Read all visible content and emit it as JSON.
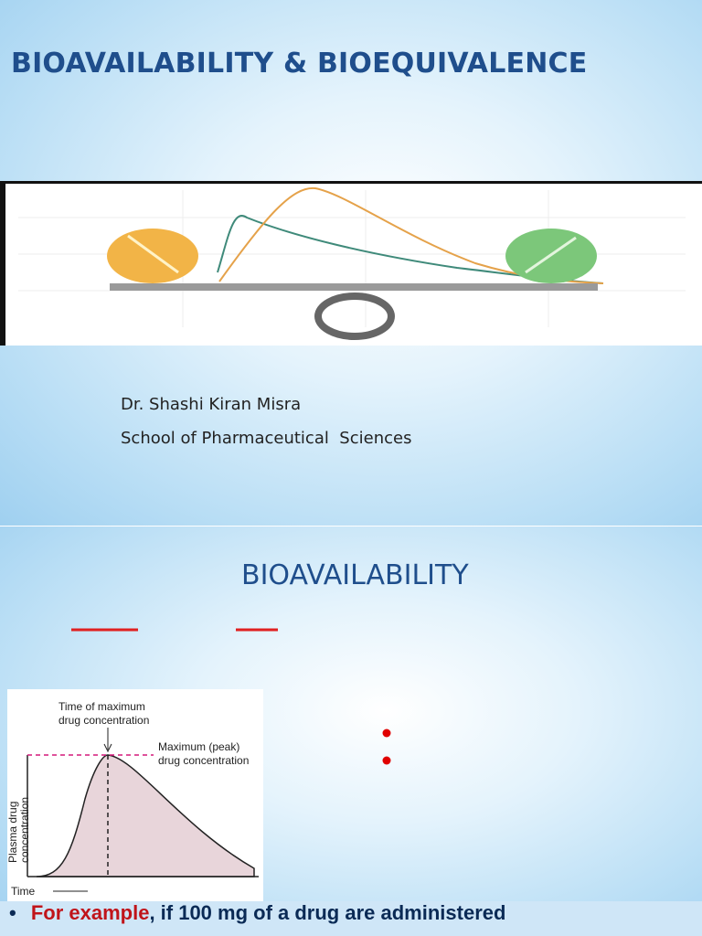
{
  "slide1": {
    "title": "BIOAVAILABILITY & BIOEQUIVALENCE",
    "author": "Dr. Shashi Kiran Misra",
    "affiliation": "School of Pharmaceutical  Sciences"
  },
  "slide2": {
    "title": "BIOAVAILABILITY",
    "figure": {
      "tmax_label": "Time of maximum drug concentration",
      "cmax_label": "Maximum (peak) drug concentration",
      "y_axis_label": "Plasma drug concentration",
      "x_axis_label": "Time"
    },
    "example": {
      "lead": "For example",
      "rest": ", if 100 mg of a drug are administered"
    }
  }
}
